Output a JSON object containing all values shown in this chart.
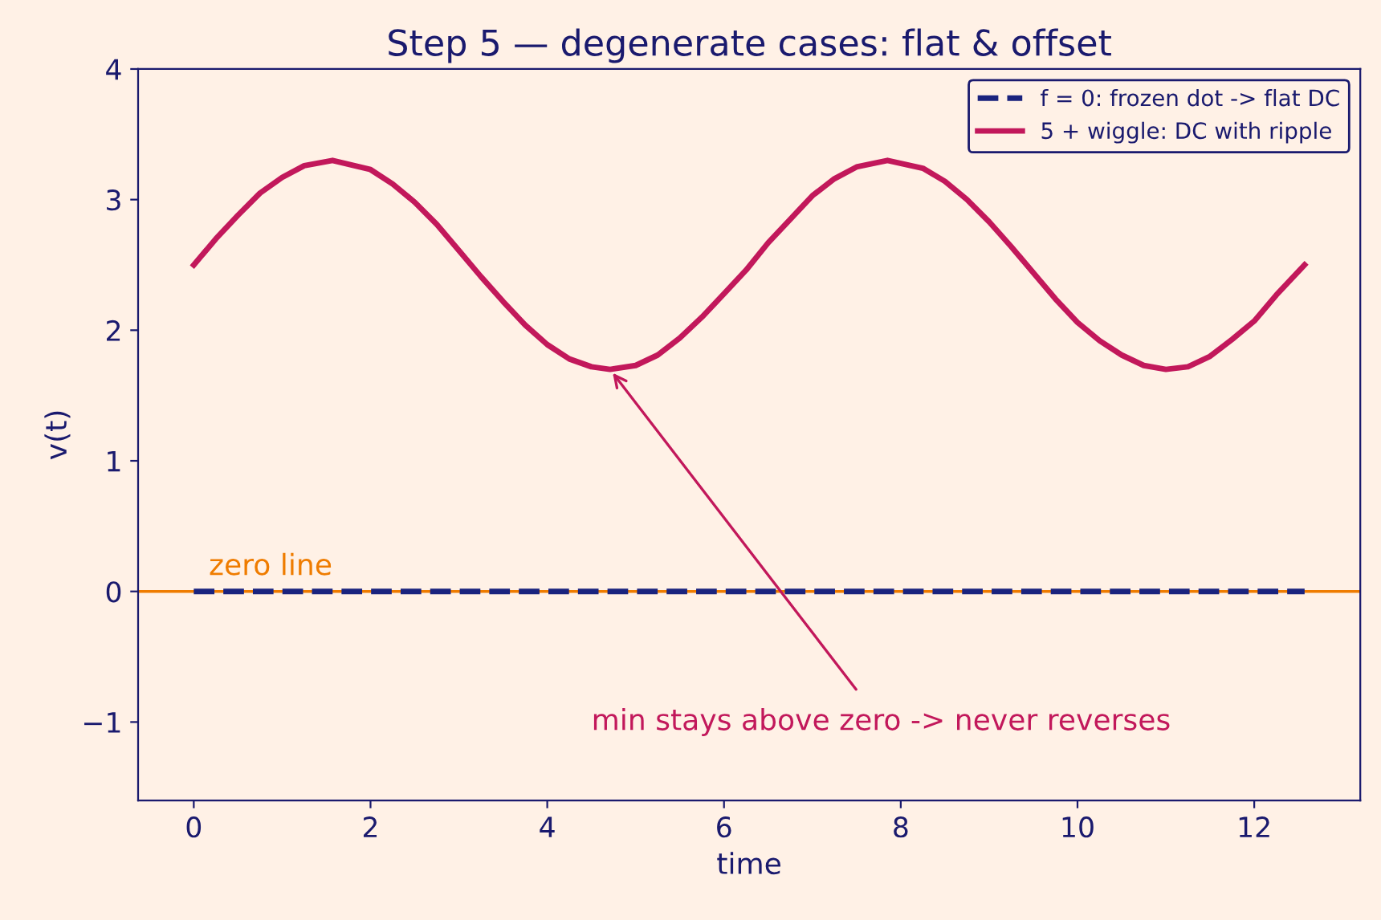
{
  "chart_data": {
    "type": "line",
    "title": "Step 5 — degenerate cases: flat & offset",
    "xlabel": "time",
    "ylabel": "v(t)",
    "series": [
      {
        "name": "f = 0: frozen dot -> flat DC",
        "color": "#1a237e",
        "line_style": "dashed",
        "x": [
          0,
          12.57
        ],
        "values": [
          0,
          0
        ]
      },
      {
        "name": "5 + wiggle: DC with ripple",
        "color": "#c2185b",
        "line_style": "solid",
        "x": [
          0,
          0.25,
          0.5,
          0.75,
          1,
          1.25,
          1.57,
          2,
          2.25,
          2.5,
          2.75,
          3,
          3.25,
          3.5,
          3.75,
          4,
          4.25,
          4.5,
          4.71,
          5,
          5.25,
          5.5,
          5.75,
          6,
          6.25,
          6.5,
          6.75,
          7,
          7.25,
          7.5,
          7.85,
          8.25,
          8.5,
          8.75,
          9,
          9.25,
          9.5,
          9.75,
          10,
          10.25,
          10.5,
          10.75,
          11,
          11.25,
          11.5,
          11.75,
          12,
          12.25,
          12.57
        ],
        "values": [
          2.5,
          2.7,
          2.88,
          3.05,
          3.17,
          3.26,
          3.3,
          3.23,
          3.12,
          2.98,
          2.81,
          2.61,
          2.41,
          2.22,
          2.04,
          1.89,
          1.78,
          1.72,
          1.7,
          1.73,
          1.81,
          1.94,
          2.1,
          2.28,
          2.46,
          2.67,
          2.85,
          3.03,
          3.16,
          3.25,
          3.3,
          3.24,
          3.14,
          3.0,
          2.83,
          2.64,
          2.44,
          2.24,
          2.06,
          1.92,
          1.81,
          1.73,
          1.7,
          1.72,
          1.8,
          1.93,
          2.07,
          2.27,
          2.5
        ]
      }
    ],
    "ref_lines": [
      {
        "axis": "y",
        "value": 0,
        "label": "zero line",
        "color": "#ef7c00"
      }
    ],
    "annotations": [
      {
        "text": "min stays above zero -> never reverses",
        "x": 4.71,
        "y": 1.7
      }
    ],
    "xlim": [
      -0.63,
      13.2
    ],
    "ylim": [
      -1.6,
      4
    ],
    "xticks": [
      0,
      2,
      4,
      6,
      8,
      10,
      12
    ],
    "yticks": [
      {
        "value": -1,
        "label": "−1"
      },
      0,
      1,
      2,
      3,
      4
    ],
    "grid": false,
    "legend": "top right",
    "marker": "none"
  }
}
